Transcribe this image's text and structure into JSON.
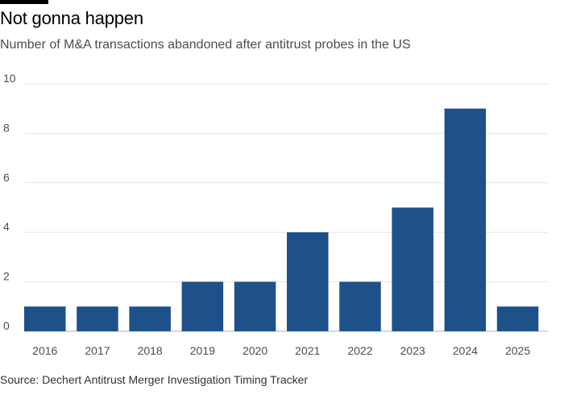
{
  "header": {
    "title": "Not gonna happen",
    "subtitle": "Number of M&A transactions abandoned after antitrust probes in the US"
  },
  "footer": {
    "source": "Source: Dechert Antitrust Merger Investigation Timing Tracker"
  },
  "colors": {
    "bar": "#1e518a",
    "grid": "#e6e6e6",
    "baseline": "#b3b3b3",
    "text": "#4d4d4d"
  },
  "chart_data": {
    "type": "bar",
    "title": "Not gonna happen",
    "subtitle": "Number of M&A transactions abandoned after antitrust probes in the US",
    "xlabel": "",
    "ylabel": "",
    "categories": [
      "2016",
      "2017",
      "2018",
      "2019",
      "2020",
      "2021",
      "2022",
      "2023",
      "2024",
      "2025"
    ],
    "values": [
      1,
      1,
      1,
      2,
      2,
      4,
      2,
      5,
      9,
      1
    ],
    "ylim": [
      0,
      10
    ],
    "yticks": [
      "0",
      "2",
      "4",
      "6",
      "8",
      "10"
    ],
    "grid": true,
    "legend": "none"
  }
}
